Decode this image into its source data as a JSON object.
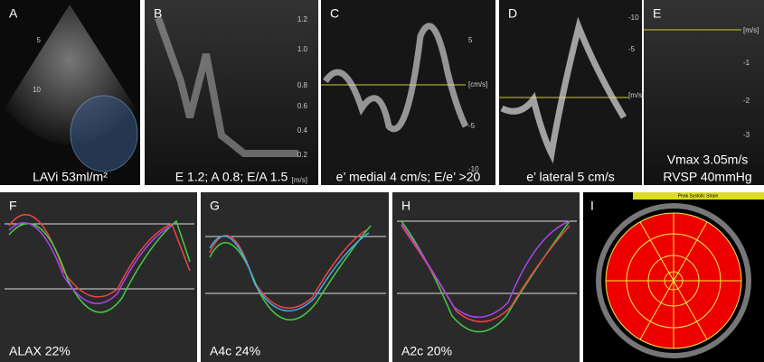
{
  "panels": [
    {
      "letter": "A",
      "caption": "LAVi 53ml/m²",
      "ticks": [
        "5",
        "10"
      ]
    },
    {
      "letter": "B",
      "caption": "E 1.2; A 0.8; E/A 1.5",
      "ticks": [
        "1.2",
        "1.0",
        "0.8",
        "0.6",
        "0.4",
        "0.2",
        "[m/s]"
      ]
    },
    {
      "letter": "C",
      "caption": "e’ medial 4 cm/s; E/e’ >20",
      "ticks": [
        "5",
        "[cm/s]",
        "-5",
        "-10"
      ]
    },
    {
      "letter": "D",
      "caption": "e’ lateral 5 cm/s",
      "ticks": [
        "-10",
        "-5",
        "[m/s]"
      ]
    },
    {
      "letter": "E",
      "caption": "Vmax 3.05m/s",
      "caption2": "RVSP 40mmHg",
      "ticks": [
        "[m/s]",
        "-1",
        "-2",
        "-3"
      ]
    },
    {
      "letter": "F",
      "caption": "ALAX 22%"
    },
    {
      "letter": "G",
      "caption": "A4c 24%"
    },
    {
      "letter": "H",
      "caption": "A2c 20%"
    },
    {
      "letter": "I",
      "caption": "Peak Systolic Strain"
    }
  ]
}
